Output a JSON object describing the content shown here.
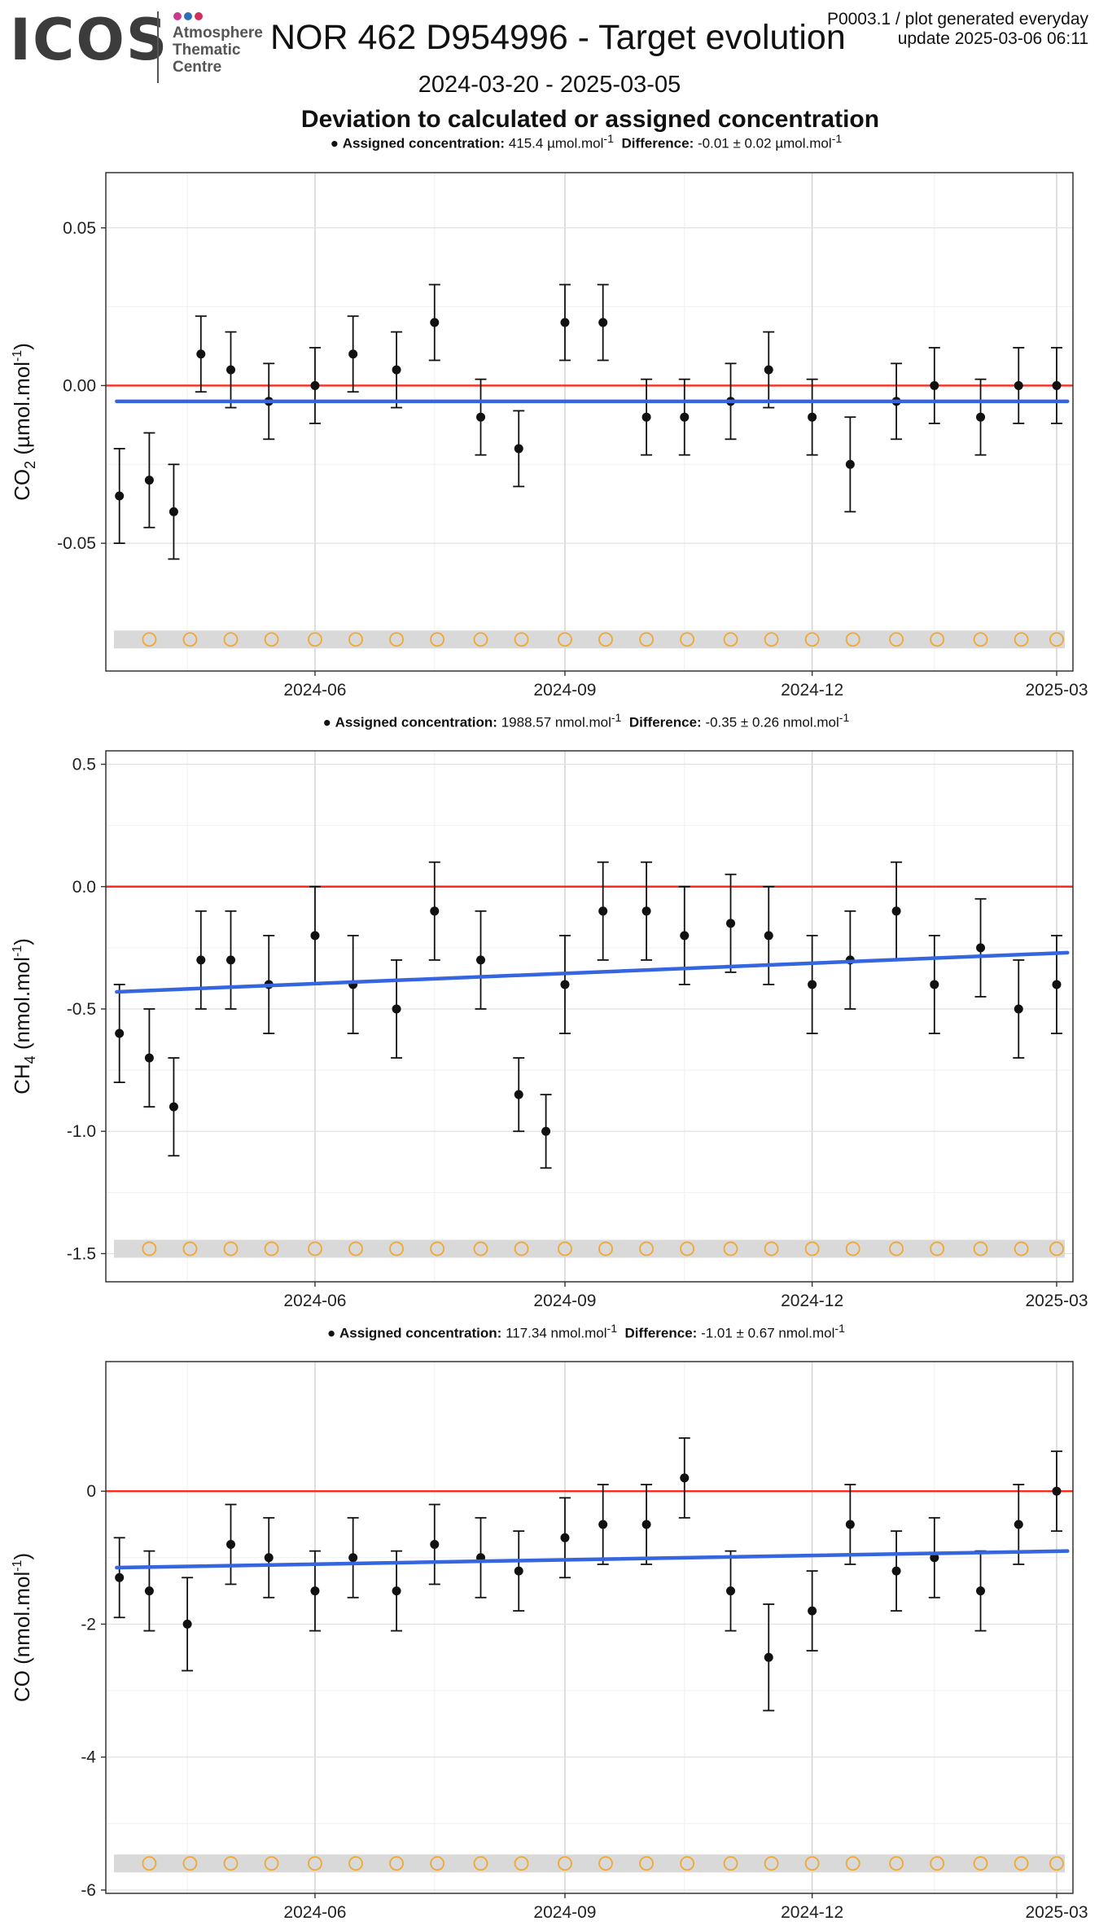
{
  "header": {
    "logo_text": "ICOS",
    "logo_sub": [
      "Atmosphere",
      "Thematic",
      "Centre"
    ],
    "logo_dot_colors": [
      "#c93a8e",
      "#2f6fb5",
      "#d12f5e"
    ],
    "title": "NOR 462 D954996 - Target evolution",
    "meta_line1": "P0003.1 / plot generated everyday",
    "meta_line2": "update  2025-03-06 06:11",
    "date_range": "2024-03-20 - 2025-03-05",
    "subtitle": "Deviation to calculated or assigned concentration"
  },
  "colors": {
    "reference_line": "#ff2a1a",
    "trend_line": "#3566e0",
    "points": "#111111",
    "status_band": "#d9d9d9",
    "status_marker": "#f0a830"
  },
  "chart_data": [
    {
      "type": "scatter",
      "panel": "CO2",
      "ylabel": "CO2 (µmol.mol-1)",
      "ylabel_main": "CO",
      "ylabel_sub": "2",
      "ylabel_unit": " (µmol.mol",
      "ylabel_exp": "-1",
      "ylabel_close": ")",
      "assigned_label": "Assigned concentration:",
      "assigned_value": "415.4 µmol.mol",
      "assigned_exp": "-1",
      "difference_label": "Difference:",
      "difference_value": "-0.01 ± 0.02 µmol.mol",
      "difference_exp": "-1",
      "xlim": [
        "2024-03-16",
        "2025-03-07"
      ],
      "ylim": [
        -0.0905,
        0.0675
      ],
      "yticks": [
        0.05,
        0.0,
        -0.05
      ],
      "ytick_labels": [
        "0.05",
        "0.00",
        "-0.05"
      ],
      "xticks": [
        "2024-06-01",
        "2024-09-01",
        "2024-12-01",
        "2025-03-01"
      ],
      "xtick_labels": [
        "2024-06",
        "2024-09",
        "2024-12",
        "2025-03"
      ],
      "reference_y": 0,
      "trend": {
        "start": [
          "2024-03-20",
          -0.005
        ],
        "end": [
          "2025-03-05",
          -0.005
        ]
      },
      "status_band_y": -0.0805,
      "status_marker_dates": [
        "2024-04-01",
        "2024-04-16",
        "2024-05-01",
        "2024-05-16",
        "2024-06-01",
        "2024-06-16",
        "2024-07-01",
        "2024-07-16",
        "2024-08-01",
        "2024-08-16",
        "2024-09-01",
        "2024-09-16",
        "2024-10-01",
        "2024-10-16",
        "2024-11-01",
        "2024-11-16",
        "2024-12-01",
        "2024-12-16",
        "2025-01-01",
        "2025-01-16",
        "2025-02-01",
        "2025-02-16",
        "2025-03-01"
      ],
      "series": [
        {
          "name": "CO2",
          "x": [
            "2024-03-21",
            "2024-04-01",
            "2024-04-10",
            "2024-04-20",
            "2024-05-01",
            "2024-05-15",
            "2024-06-01",
            "2024-06-15",
            "2024-07-01",
            "2024-07-15",
            "2024-08-01",
            "2024-08-15",
            "2024-09-01",
            "2024-09-15",
            "2024-10-01",
            "2024-10-15",
            "2024-11-01",
            "2024-11-15",
            "2024-12-01",
            "2024-12-15",
            "2025-01-01",
            "2025-01-15",
            "2025-02-01",
            "2025-02-15",
            "2025-03-01"
          ],
          "y": [
            -0.035,
            -0.03,
            -0.04,
            0.01,
            0.005,
            -0.005,
            0.0,
            0.01,
            0.005,
            0.02,
            -0.01,
            -0.02,
            0.02,
            0.02,
            -0.01,
            -0.01,
            -0.005,
            0.005,
            -0.01,
            -0.025,
            -0.005,
            0.0,
            -0.01,
            0.0,
            0.0
          ],
          "err": [
            0.015,
            0.015,
            0.015,
            0.012,
            0.012,
            0.012,
            0.012,
            0.012,
            0.012,
            0.012,
            0.012,
            0.012,
            0.012,
            0.012,
            0.012,
            0.012,
            0.012,
            0.012,
            0.012,
            0.015,
            0.012,
            0.012,
            0.012,
            0.012,
            0.012
          ]
        }
      ]
    },
    {
      "type": "scatter",
      "panel": "CH4",
      "ylabel": "CH4 (nmol.mol-1)",
      "ylabel_main": "CH",
      "ylabel_sub": "4",
      "ylabel_unit": " (nmol.mol",
      "ylabel_exp": "-1",
      "ylabel_close": ")",
      "assigned_label": "Assigned concentration:",
      "assigned_value": "1988.57 nmol.mol",
      "assigned_exp": "-1",
      "difference_label": "Difference:",
      "difference_value": "-0.35 ± 0.26 nmol.mol",
      "difference_exp": "-1",
      "xlim": [
        "2024-03-16",
        "2025-03-07"
      ],
      "ylim": [
        -1.615,
        0.555
      ],
      "yticks": [
        0.5,
        0.0,
        -0.5,
        -1.0,
        -1.5
      ],
      "ytick_labels": [
        "0.5",
        "0.0",
        "-0.5",
        "-1.0",
        "-1.5"
      ],
      "xticks": [
        "2024-06-01",
        "2024-09-01",
        "2024-12-01",
        "2025-03-01"
      ],
      "xtick_labels": [
        "2024-06",
        "2024-09",
        "2024-12",
        "2025-03"
      ],
      "reference_y": 0,
      "trend": {
        "start": [
          "2024-03-20",
          -0.43
        ],
        "end": [
          "2025-03-05",
          -0.27
        ]
      },
      "status_band_y": -1.48,
      "status_marker_dates": [
        "2024-04-01",
        "2024-04-16",
        "2024-05-01",
        "2024-05-16",
        "2024-06-01",
        "2024-06-16",
        "2024-07-01",
        "2024-07-16",
        "2024-08-01",
        "2024-08-16",
        "2024-09-01",
        "2024-09-16",
        "2024-10-01",
        "2024-10-16",
        "2024-11-01",
        "2024-11-16",
        "2024-12-01",
        "2024-12-16",
        "2025-01-01",
        "2025-01-16",
        "2025-02-01",
        "2025-02-16",
        "2025-03-01"
      ],
      "series": [
        {
          "name": "CH4",
          "x": [
            "2024-03-21",
            "2024-04-01",
            "2024-04-10",
            "2024-04-20",
            "2024-05-01",
            "2024-05-15",
            "2024-06-01",
            "2024-06-15",
            "2024-07-01",
            "2024-07-15",
            "2024-08-01",
            "2024-08-15",
            "2024-08-25",
            "2024-09-01",
            "2024-09-15",
            "2024-10-01",
            "2024-10-15",
            "2024-11-01",
            "2024-11-15",
            "2024-12-01",
            "2024-12-15",
            "2025-01-01",
            "2025-01-15",
            "2025-02-01",
            "2025-02-15",
            "2025-03-01"
          ],
          "y": [
            -0.6,
            -0.7,
            -0.9,
            -0.3,
            -0.3,
            -0.4,
            -0.2,
            -0.4,
            -0.5,
            -0.1,
            -0.3,
            -0.85,
            -1.0,
            -0.4,
            -0.1,
            -0.1,
            -0.2,
            -0.15,
            -0.2,
            -0.4,
            -0.3,
            -0.1,
            -0.4,
            -0.25,
            -0.5,
            -0.4
          ],
          "err": [
            0.2,
            0.2,
            0.2,
            0.2,
            0.2,
            0.2,
            0.2,
            0.2,
            0.2,
            0.2,
            0.2,
            0.15,
            0.15,
            0.2,
            0.2,
            0.2,
            0.2,
            0.2,
            0.2,
            0.2,
            0.2,
            0.2,
            0.2,
            0.2,
            0.2,
            0.2
          ]
        }
      ]
    },
    {
      "type": "scatter",
      "panel": "CO",
      "ylabel": "CO (nmol.mol-1)",
      "ylabel_main": "CO",
      "ylabel_sub": "",
      "ylabel_unit": " (nmol.mol",
      "ylabel_exp": "-1",
      "ylabel_close": ")",
      "assigned_label": "Assigned concentration:",
      "assigned_value": "117.34 nmol.mol",
      "assigned_exp": "-1",
      "difference_label": "Difference:",
      "difference_value": "-1.01 ± 0.67 nmol.mol",
      "difference_exp": "-1",
      "xlim": [
        "2024-03-16",
        "2025-03-07"
      ],
      "ylim": [
        -6.05,
        1.95
      ],
      "yticks": [
        0,
        -2,
        -4,
        -6
      ],
      "ytick_labels": [
        "0",
        "-2",
        "-4",
        "-6"
      ],
      "xticks": [
        "2024-06-01",
        "2024-09-01",
        "2024-12-01",
        "2025-03-01"
      ],
      "xtick_labels": [
        "2024-06",
        "2024-09",
        "2024-12",
        "2025-03"
      ],
      "reference_y": 0,
      "trend": {
        "start": [
          "2024-03-20",
          -1.15
        ],
        "end": [
          "2025-03-05",
          -0.9
        ]
      },
      "status_band_y": -5.6,
      "status_marker_dates": [
        "2024-04-01",
        "2024-04-16",
        "2024-05-01",
        "2024-05-16",
        "2024-06-01",
        "2024-06-16",
        "2024-07-01",
        "2024-07-16",
        "2024-08-01",
        "2024-08-16",
        "2024-09-01",
        "2024-09-16",
        "2024-10-01",
        "2024-10-16",
        "2024-11-01",
        "2024-11-16",
        "2024-12-01",
        "2024-12-16",
        "2025-01-01",
        "2025-01-16",
        "2025-02-01",
        "2025-02-16",
        "2025-03-01"
      ],
      "series": [
        {
          "name": "CO",
          "x": [
            "2024-03-21",
            "2024-04-01",
            "2024-04-15",
            "2024-05-01",
            "2024-05-15",
            "2024-06-01",
            "2024-06-15",
            "2024-07-01",
            "2024-07-15",
            "2024-08-01",
            "2024-08-15",
            "2024-09-01",
            "2024-09-15",
            "2024-10-01",
            "2024-10-15",
            "2024-11-01",
            "2024-11-15",
            "2024-12-01",
            "2024-12-15",
            "2025-01-01",
            "2025-01-15",
            "2025-02-01",
            "2025-02-15",
            "2025-03-01"
          ],
          "y": [
            -1.3,
            -1.5,
            -2.0,
            -0.8,
            -1.0,
            -1.5,
            -1.0,
            -1.5,
            -0.8,
            -1.0,
            -1.2,
            -0.7,
            -0.5,
            -0.5,
            0.2,
            -1.5,
            -2.5,
            -1.8,
            -0.5,
            -1.2,
            -1.0,
            -1.5,
            -0.5,
            0.0
          ],
          "err": [
            0.6,
            0.6,
            0.7,
            0.6,
            0.6,
            0.6,
            0.6,
            0.6,
            0.6,
            0.6,
            0.6,
            0.6,
            0.6,
            0.6,
            0.6,
            0.6,
            0.8,
            0.6,
            0.6,
            0.6,
            0.6,
            0.6,
            0.6,
            0.6
          ]
        }
      ]
    }
  ]
}
